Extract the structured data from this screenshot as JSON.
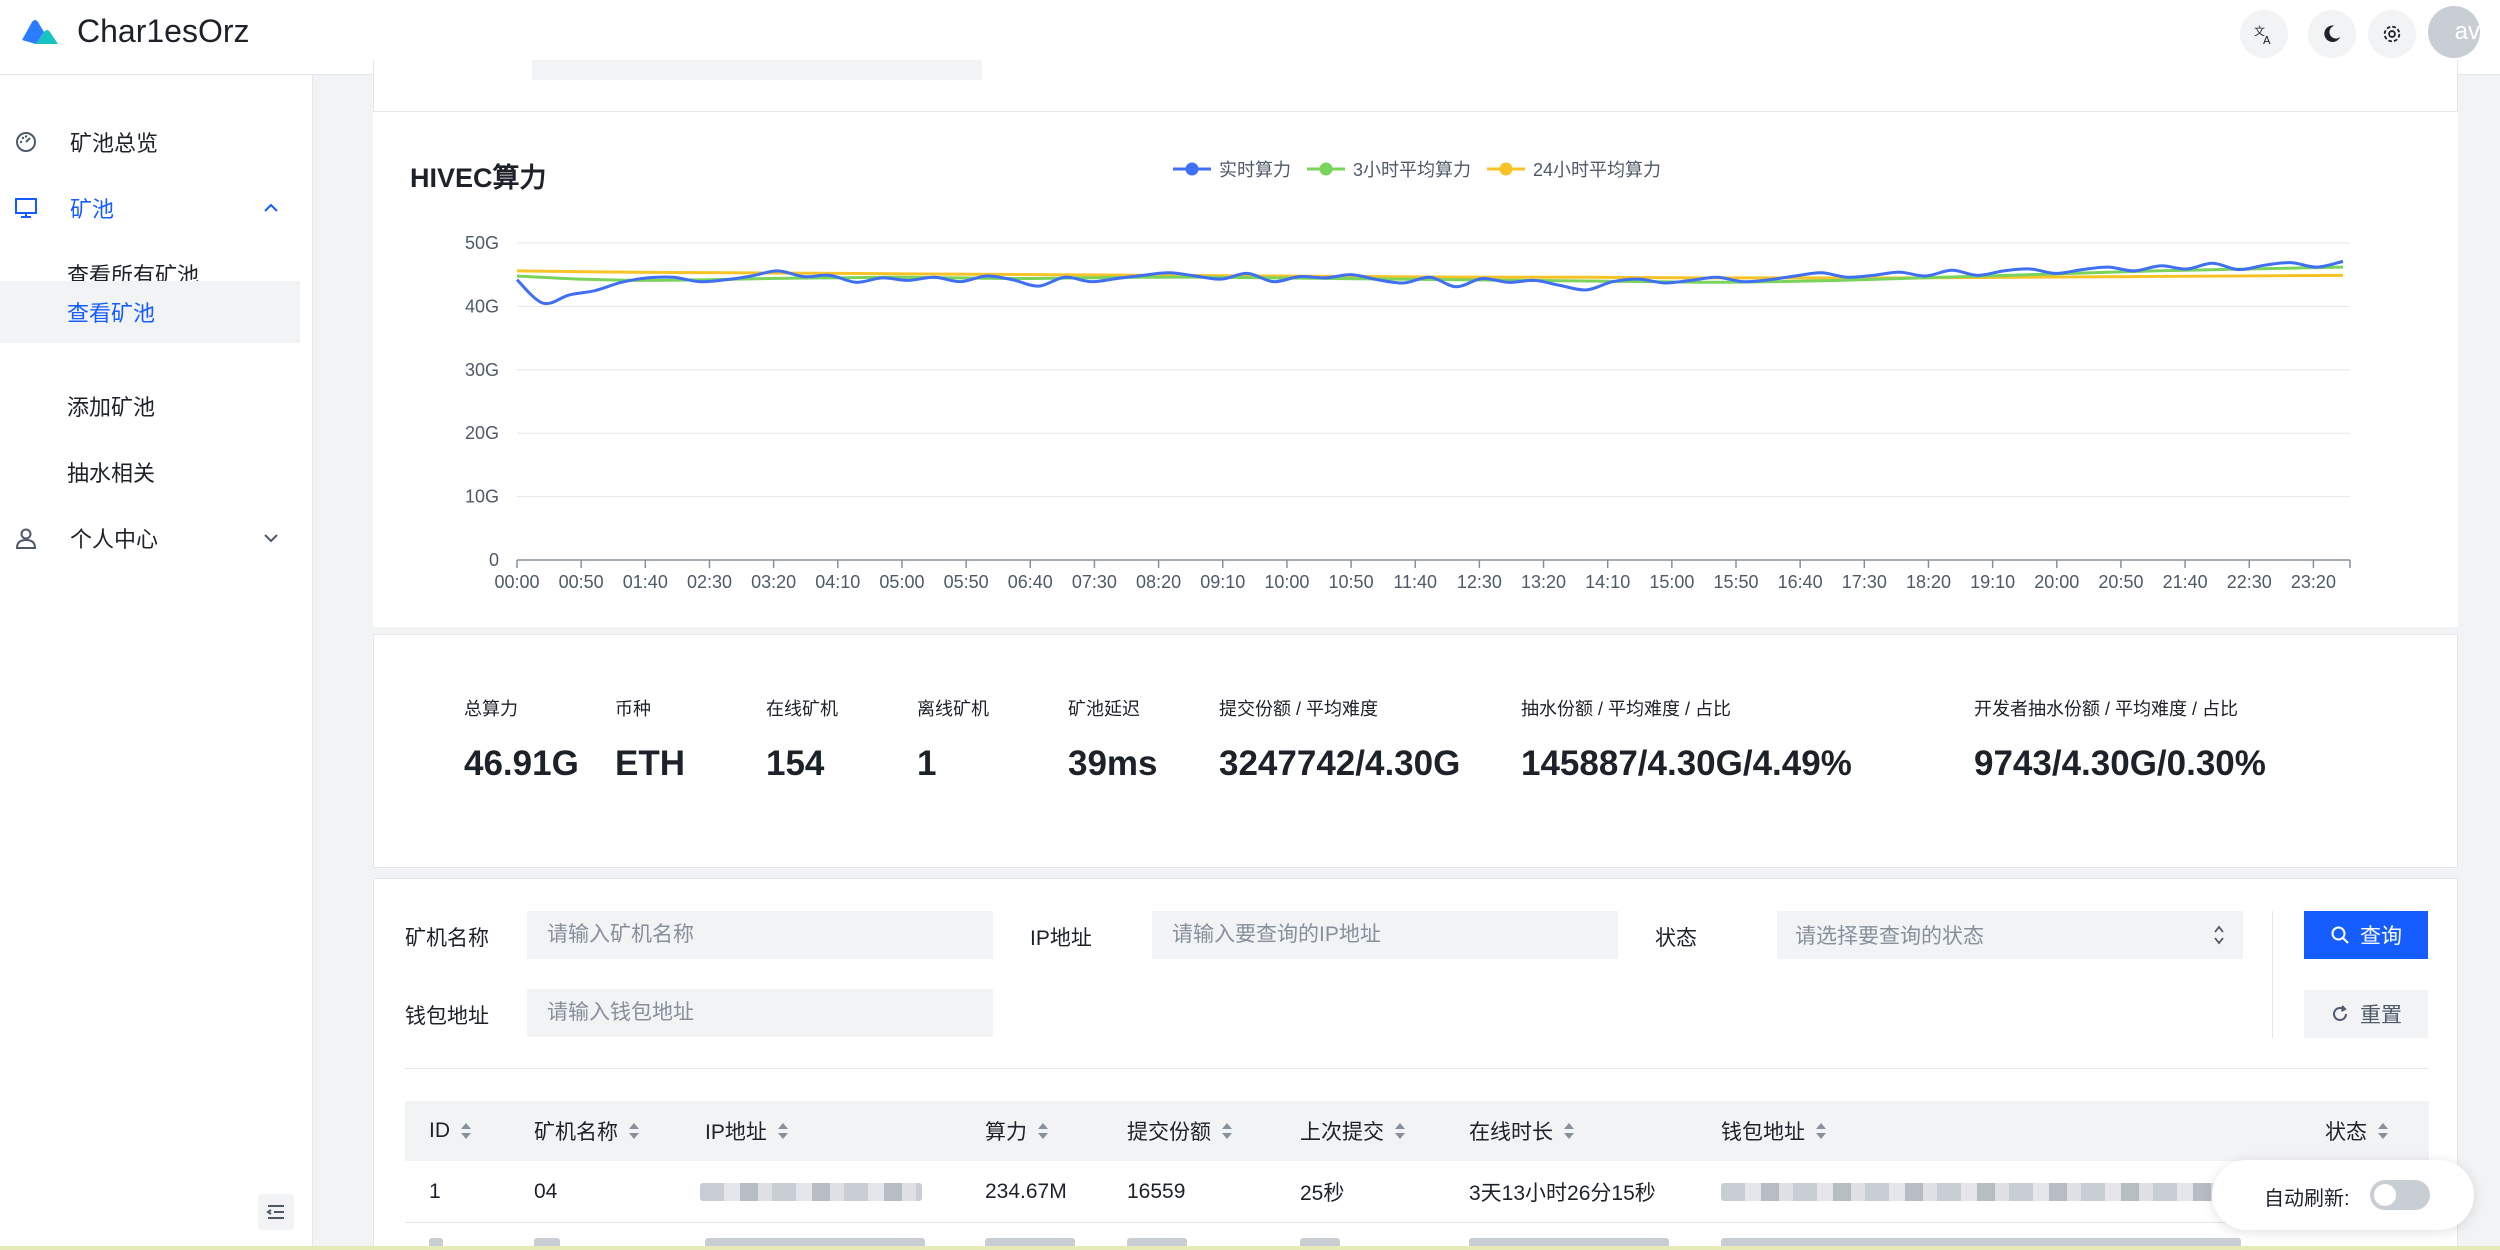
{
  "app": {
    "title": "Char1esOrz",
    "avatar_text": "av"
  },
  "colors": {
    "primary": "#165dff",
    "realtime": "#3f6ff3",
    "avg3h": "#7ad35b",
    "avg24h": "#f7c327"
  },
  "sidebar": {
    "items": [
      {
        "label": "矿池总览",
        "icon": "dashboard-icon"
      },
      {
        "label": "矿池",
        "icon": "desktop-icon",
        "expanded": true
      },
      {
        "label": "查看所有矿池"
      },
      {
        "label": "查看矿池",
        "active": true
      },
      {
        "label": "添加矿池"
      },
      {
        "label": "抽水相关"
      },
      {
        "label": "个人中心",
        "icon": "user-icon"
      }
    ]
  },
  "chart_data": {
    "type": "line",
    "title": "HIVEC算力",
    "legend_position": "top-center",
    "grid": true,
    "ylim": [
      0,
      50
    ],
    "y_ticks": [
      "0",
      "10G",
      "20G",
      "30G",
      "40G",
      "50G"
    ],
    "x_ticks": [
      "00:00",
      "00:50",
      "01:40",
      "02:30",
      "03:20",
      "04:10",
      "05:00",
      "05:50",
      "06:40",
      "07:30",
      "08:20",
      "09:10",
      "10:00",
      "10:50",
      "11:40",
      "12:30",
      "13:20",
      "14:10",
      "15:00",
      "15:50",
      "16:40",
      "17:30",
      "18:20",
      "19:10",
      "20:00",
      "20:50",
      "21:40",
      "22:30",
      "23:20"
    ],
    "series": [
      {
        "name": "实时算力",
        "color": "#3f6ff3",
        "values": [
          44.2,
          40.5,
          41.8,
          42.5,
          43.8,
          44.5,
          44.6,
          43.9,
          44.2,
          44.8,
          45.6,
          44.7,
          44.9,
          43.8,
          44.5,
          44.1,
          44.6,
          43.9,
          44.8,
          44.2,
          43.2,
          44.6,
          43.9,
          44.4,
          44.9,
          45.3,
          44.8,
          44.3,
          45.2,
          43.9,
          44.7,
          44.5,
          45.0,
          44.2,
          43.7,
          44.6,
          43.1,
          44.4,
          43.8,
          44.1,
          43.3,
          42.6,
          43.9,
          44.3,
          43.7,
          44.1,
          44.6,
          43.9,
          44.2,
          44.8,
          45.3,
          44.6,
          44.9,
          45.4,
          44.8,
          45.7,
          44.9,
          45.6,
          45.9,
          45.2,
          45.8,
          46.2,
          45.6,
          46.4,
          45.9,
          46.8,
          45.8,
          46.5,
          46.9,
          46.2,
          47.1
        ]
      },
      {
        "name": "3小时平均算力",
        "color": "#7ad35b",
        "values": [
          44.8,
          44.3,
          44.1,
          44.2,
          44.4,
          44.5,
          44.6,
          44.5,
          44.4,
          44.5,
          44.6,
          44.6,
          44.5,
          44.4,
          44.3,
          44.2,
          44.1,
          44.0,
          43.9,
          43.8,
          43.9,
          44.1,
          44.4,
          44.7,
          45.0,
          45.3,
          45.6,
          45.8,
          46.0,
          46.2
        ]
      },
      {
        "name": "24小时平均算力",
        "color": "#f7c327",
        "values": [
          45.6,
          45.4,
          45.3,
          45.2,
          45.1,
          45.0,
          44.9,
          44.8,
          44.7,
          44.6,
          44.6,
          44.5,
          44.5,
          44.5,
          44.6,
          44.7,
          44.8,
          44.9
        ]
      }
    ]
  },
  "stats": [
    {
      "label": "总算力",
      "value": "46.91G"
    },
    {
      "label": "币种",
      "value": "ETH"
    },
    {
      "label": "在线矿机",
      "value": "154"
    },
    {
      "label": "离线矿机",
      "value": "1"
    },
    {
      "label": "矿池延迟",
      "value": "39ms"
    },
    {
      "label": "提交份额 / 平均难度",
      "value": "3247742/4.30G"
    },
    {
      "label": "抽水份额 / 平均难度 / 占比",
      "value": "145887/4.30G/4.49%"
    },
    {
      "label": "开发者抽水份额 / 平均难度 / 占比",
      "value": "9743/4.30G/0.30%"
    }
  ],
  "filter": {
    "name_label": "矿机名称",
    "name_placeholder": "请输入矿机名称",
    "ip_label": "IP地址",
    "ip_placeholder": "请输入要查询的IP地址",
    "status_label": "状态",
    "status_placeholder": "请选择要查询的状态",
    "wallet_label": "钱包地址",
    "wallet_placeholder": "请输入钱包地址",
    "search_label": "查询",
    "reset_label": "重置"
  },
  "table": {
    "columns": [
      "ID",
      "矿机名称",
      "IP地址",
      "算力",
      "提交份额",
      "上次提交",
      "在线时长",
      "钱包地址",
      "状态"
    ],
    "rows": [
      {
        "id": "1",
        "name": "04",
        "hashrate": "234.67M",
        "shares": "16559",
        "last_submit": "25秒",
        "online": "3天13小时26分15秒"
      }
    ]
  },
  "auto_refresh": {
    "label": "自动刷新:",
    "enabled": false
  }
}
